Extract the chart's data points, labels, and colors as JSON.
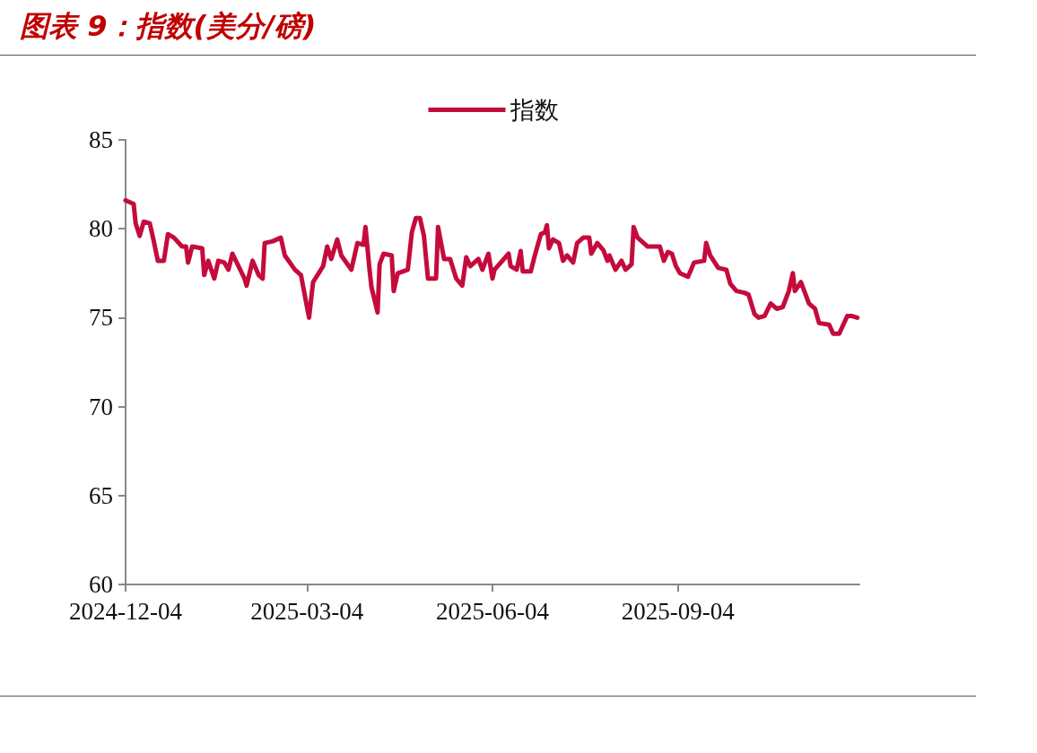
{
  "chart_data": {
    "type": "line",
    "title": "图表 9：指数(美分/磅)",
    "xlim": [
      "2024-12-04",
      "2025-12-03"
    ],
    "xticks": [
      "2024-12-04",
      "2025-03-04",
      "2025-06-04",
      "2025-09-04"
    ],
    "ylim": [
      60,
      85
    ],
    "yticks": [
      60,
      65,
      70,
      75,
      80,
      85
    ],
    "grid": false,
    "legend": "top",
    "marker": "none",
    "line_style": "solid",
    "series": [
      {
        "name": "指数",
        "color": "#c40c3c",
        "x": [
          "2024-12-04",
          "2024-12-08",
          "2024-12-09",
          "2024-12-11",
          "2024-12-13",
          "2024-12-16",
          "2024-12-18",
          "2024-12-20",
          "2024-12-23",
          "2024-12-25",
          "2024-12-28",
          "2025-01-01",
          "2025-01-03",
          "2025-01-04",
          "2025-01-06",
          "2025-01-11",
          "2025-01-12",
          "2025-01-14",
          "2025-01-17",
          "2025-01-19",
          "2025-01-22",
          "2025-01-24",
          "2025-01-26",
          "2025-01-29",
          "2025-02-01",
          "2025-02-02",
          "2025-02-05",
          "2025-02-08",
          "2025-02-10",
          "2025-02-11",
          "2025-02-15",
          "2025-02-19",
          "2025-02-21",
          "2025-02-26",
          "2025-03-01",
          "2025-03-03",
          "2025-03-05",
          "2025-03-07",
          "2025-03-12",
          "2025-03-14",
          "2025-03-16",
          "2025-03-19",
          "2025-03-21",
          "2025-03-26",
          "2025-03-29",
          "2025-04-01",
          "2025-04-02",
          "2025-04-04",
          "2025-04-05",
          "2025-04-08",
          "2025-04-09",
          "2025-04-11",
          "2025-04-15",
          "2025-04-16",
          "2025-04-18",
          "2025-04-23",
          "2025-04-25",
          "2025-04-27",
          "2025-04-29",
          "2025-05-01",
          "2025-05-03",
          "2025-05-07",
          "2025-05-08",
          "2025-05-11",
          "2025-05-14",
          "2025-05-17",
          "2025-05-20",
          "2025-05-22",
          "2025-05-24",
          "2025-05-28",
          "2025-05-30",
          "2025-06-02",
          "2025-06-04",
          "2025-06-05",
          "2025-06-12",
          "2025-06-13",
          "2025-06-16",
          "2025-06-18",
          "2025-06-19",
          "2025-06-23",
          "2025-06-25",
          "2025-06-28",
          "2025-06-30",
          "2025-07-01",
          "2025-07-02",
          "2025-07-04",
          "2025-07-07",
          "2025-07-09",
          "2025-07-11",
          "2025-07-14",
          "2025-07-16",
          "2025-07-19",
          "2025-07-22",
          "2025-07-23",
          "2025-07-26",
          "2025-07-29",
          "2025-07-31",
          "2025-08-01",
          "2025-08-04",
          "2025-08-07",
          "2025-08-09",
          "2025-08-12",
          "2025-08-13",
          "2025-08-15",
          "2025-08-20",
          "2025-08-26",
          "2025-08-28",
          "2025-08-30",
          "2025-09-01",
          "2025-09-03",
          "2025-09-05",
          "2025-09-09",
          "2025-09-12",
          "2025-09-17",
          "2025-09-18",
          "2025-09-20",
          "2025-09-24",
          "2025-09-28",
          "2025-09-30",
          "2025-10-03",
          "2025-10-07",
          "2025-10-09",
          "2025-10-12",
          "2025-10-14",
          "2025-10-17",
          "2025-10-20",
          "2025-10-23",
          "2025-10-26",
          "2025-10-29",
          "2025-10-31",
          "2025-11-01",
          "2025-11-04",
          "2025-11-08",
          "2025-11-11",
          "2025-11-13",
          "2025-11-18",
          "2025-11-20",
          "2025-11-23",
          "2025-11-27",
          "2025-11-29",
          "2025-12-02"
        ],
        "values": [
          81.6,
          81.4,
          80.3,
          79.6,
          80.4,
          80.3,
          79.3,
          78.2,
          78.2,
          79.7,
          79.5,
          79.0,
          79.0,
          78.1,
          79.0,
          78.9,
          77.4,
          78.2,
          77.2,
          78.2,
          78.1,
          77.7,
          78.6,
          77.9,
          77.2,
          76.8,
          78.2,
          77.4,
          77.2,
          79.2,
          79.3,
          79.5,
          78.5,
          77.7,
          77.4,
          76.2,
          75.0,
          77.0,
          77.9,
          79.0,
          78.3,
          79.4,
          78.5,
          77.7,
          79.2,
          79.1,
          80.1,
          77.7,
          76.7,
          75.3,
          78.0,
          78.6,
          78.5,
          76.5,
          77.5,
          77.7,
          79.8,
          80.6,
          80.6,
          79.6,
          77.2,
          77.2,
          80.1,
          78.3,
          78.3,
          77.2,
          76.8,
          78.4,
          77.9,
          78.3,
          77.7,
          78.6,
          77.2,
          77.7,
          78.6,
          77.9,
          77.7,
          78.75,
          77.6,
          77.6,
          78.5,
          79.7,
          79.8,
          80.2,
          78.9,
          79.4,
          79.2,
          78.2,
          78.5,
          78.1,
          79.2,
          79.5,
          79.5,
          78.6,
          79.2,
          78.8,
          78.2,
          78.5,
          77.7,
          78.2,
          77.7,
          78.0,
          80.1,
          79.5,
          79.0,
          79.0,
          78.2,
          78.7,
          78.6,
          77.9,
          77.5,
          77.3,
          78.1,
          78.2,
          79.2,
          78.5,
          77.8,
          77.7,
          76.9,
          76.5,
          76.4,
          76.3,
          75.2,
          75.0,
          75.1,
          75.8,
          75.5,
          75.6,
          76.5,
          77.5,
          76.5,
          77.0,
          75.8,
          75.5,
          74.7,
          74.6,
          74.1,
          74.1,
          75.1,
          75.1,
          75.0
        ]
      }
    ]
  }
}
